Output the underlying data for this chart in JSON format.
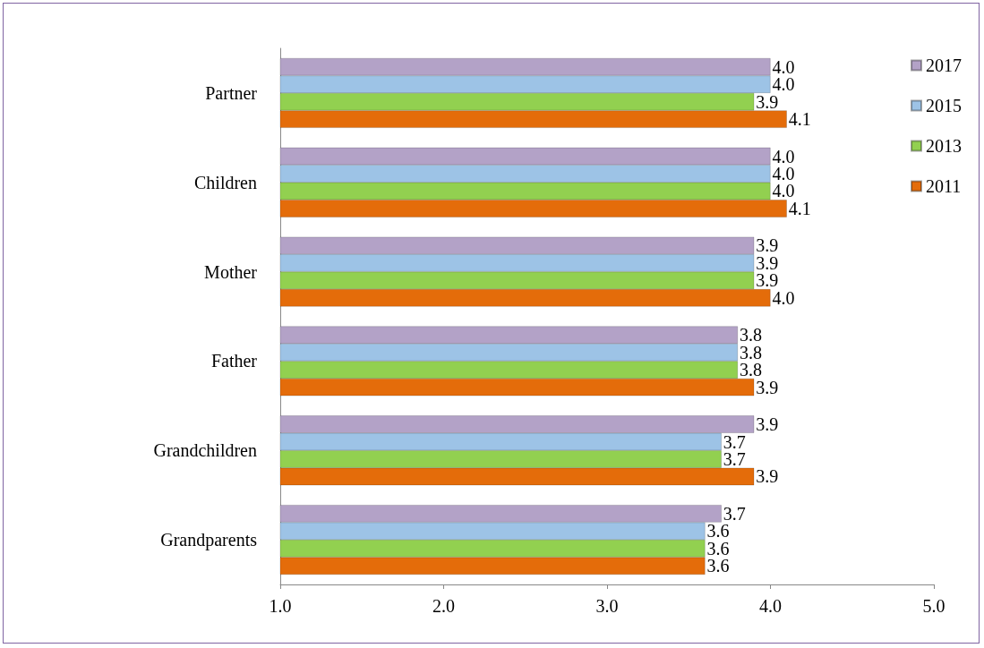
{
  "chart_data": {
    "type": "bar",
    "orientation": "horizontal",
    "categories": [
      "Partner",
      "Children",
      "Mother",
      "Father",
      "Grandchildren",
      "Grandparents"
    ],
    "series": [
      {
        "name": "2017",
        "color": "#b3a2c7",
        "values": [
          4.0,
          4.0,
          3.9,
          3.8,
          3.9,
          3.7
        ],
        "value_labels": [
          "4.0",
          "4.0",
          "3.9",
          "3.8",
          "3.9",
          "3.7"
        ]
      },
      {
        "name": "2015",
        "color": "#9dc3e6",
        "values": [
          4.0,
          4.0,
          3.9,
          3.8,
          3.7,
          3.6
        ],
        "value_labels": [
          "4.0",
          "4.0",
          "3.9",
          "3.8",
          "3.7",
          "3.6"
        ]
      },
      {
        "name": "2013",
        "color": "#92d050",
        "values": [
          3.9,
          4.0,
          3.9,
          3.8,
          3.7,
          3.6
        ],
        "value_labels": [
          "3.9",
          "4.0",
          "3.9",
          "3.8",
          "3.7",
          "3.6"
        ]
      },
      {
        "name": "2011",
        "color": "#e46c0a",
        "values": [
          4.1,
          4.1,
          4.0,
          3.9,
          3.9,
          3.6
        ],
        "value_labels": [
          "4.1",
          "4.1",
          "4.0",
          "3.9",
          "3.9",
          "3.6"
        ]
      }
    ],
    "xlim": [
      1,
      5
    ],
    "xticks": [
      {
        "value": 1,
        "label": "1.0"
      },
      {
        "value": 2,
        "label": "2.0"
      },
      {
        "value": 3,
        "label": "3.0"
      },
      {
        "value": 4,
        "label": "4.0"
      },
      {
        "value": 5,
        "label": "5.0"
      }
    ],
    "grid": false,
    "legend": "top right"
  }
}
